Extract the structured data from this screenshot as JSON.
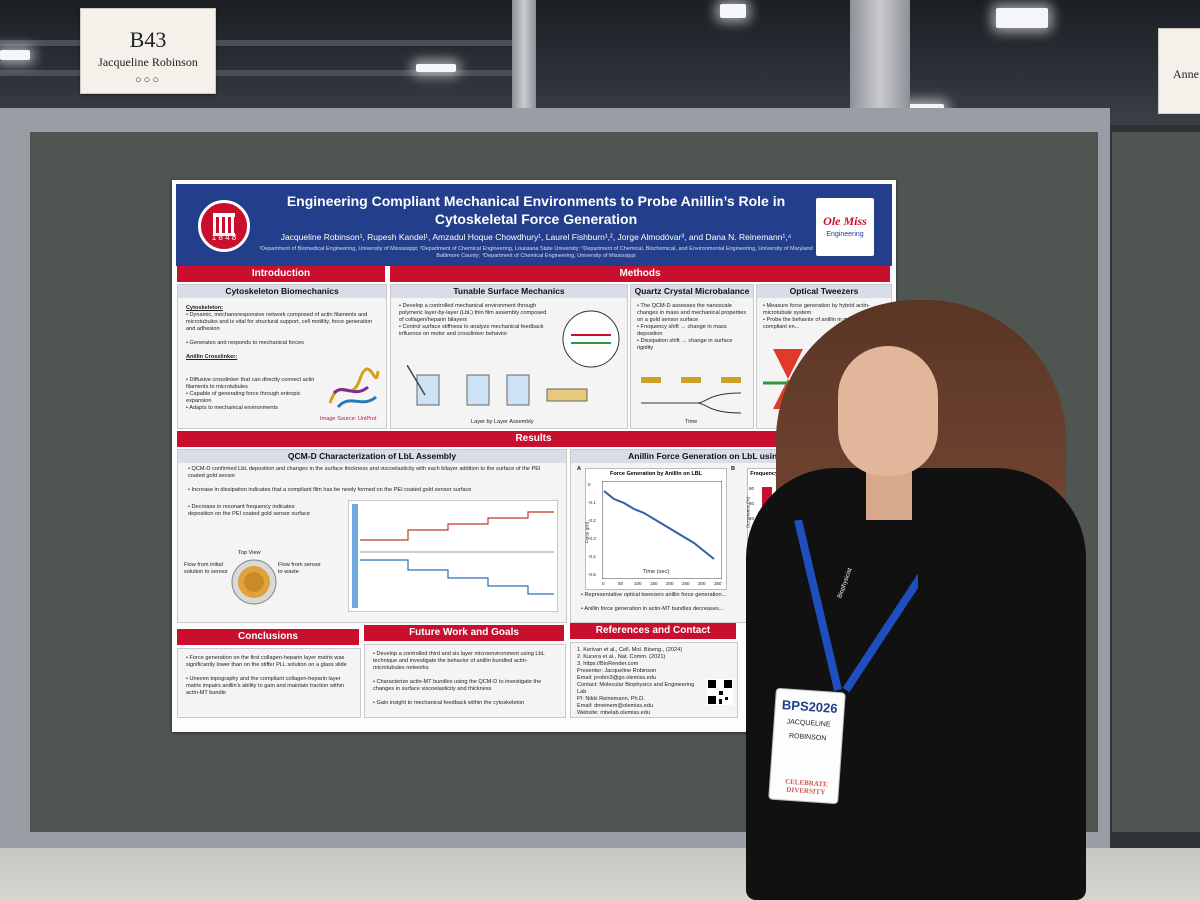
{
  "booth_sign": {
    "number": "B43",
    "name": "Jacqueline Robinson",
    "dots": "○○○"
  },
  "booth_sign_right": {
    "name": "Anne"
  },
  "poster": {
    "seal_year": "1 8 4 8",
    "title": "Engineering Compliant Mechanical Environments to Probe Anillin’s Role in Cytoskeletal Force Generation",
    "authors": "Jacqueline Robinson¹, Rupesh Kandel¹, Amzadul Hoque Chowdhury¹, Laurel Fishburn¹,², Jorge Almodóvar³, and Dana N. Reinemann¹,⁴",
    "affiliations": "¹Department of Biomedical Engineering, University of Mississippi; ²Department of Chemical Engineering, Louisiana State University; ³Department of Chemical, Biochemical, and Environmental Engineering, University of Maryland Baltimore County; ⁴Department of Chemical Engineering, University of Mississippi",
    "logo_top": "Ole Miss",
    "logo_bottom": "Engineering",
    "sections": {
      "introduction": "Introduction",
      "methods": "Methods",
      "results": "Results",
      "conclusions": "Conclusions",
      "future": "Future Work and Goals",
      "references": "References and Contact"
    },
    "panels": {
      "cyto": {
        "title": "Cytoskeleton Biomechanics",
        "h1": "Cytoskeleton:",
        "b1": "Dynamic, mechanoresponsive network composed of actin filaments and microtubules and is vital for structural support, cell motility, force generation and adhesion",
        "b2": "Generates and responds to mechanical forces",
        "h2": "Anillin Crosslinker:",
        "b3": "Diffusive crosslinker that can directly connect actin filaments to microtubules",
        "b4": "Capable of generating force through entropic expansion",
        "b5": "Adapts to mechanical environments",
        "source": "Image Source: UniProt"
      },
      "tunable": {
        "title": "Tunable Surface Mechanics",
        "b1": "Develop a controlled mechanical environment through polymeric layer-by-layer (LbL) thin film assembly composed of collagen/heparin bilayers",
        "b2": "Control surface stiffness to analyze mechanical feedback influence on motor and crosslinker behavior",
        "caption": "Layer by Layer Assembly"
      },
      "qcm": {
        "title": "Quartz Crystal Microbalance",
        "b1": "The QCM-D assesses the nanoscale changes in mass and mechanical properties on a gold sensor surface",
        "b2": "Frequency shift → change in mass deposition",
        "b3": "Dissipation shift → change in surface rigidity",
        "axis": "Time"
      },
      "tweezers": {
        "title": "Optical Tweezers",
        "b1": "Measure force generation by hybrid actin-microtubule system",
        "b2": "Probe the behavior of anillin in mechanically compliant en..."
      },
      "qcmd": {
        "title": "QCM-D Characterization of LbL Assembly",
        "b1": "QCM-D confirmed LbL deposition and changes in the surface thickness and viscoelasticity with each bilayer addition to the surface of the PEI coated gold sensor",
        "b2": "Increase in dissipation indicates that a compliant film has be newly formed on the PEI coated gold sensor surface",
        "b3": "Decrease in resonant frequency indicates deposition on the PEI coated gold sensor surface",
        "top_view": "Top View",
        "flow_in": "Flow from initial solution to sensor",
        "flow_out": "Flow from sensor to waste"
      },
      "anillin": {
        "title": "Anillin Force Generation on LbL using Optical Tw...",
        "chart_title": "Force Generation by Anillin on LBL",
        "label_a": "A",
        "label_b": "B",
        "ylabel": "Force (pN)",
        "xlabel": "Time (sec)",
        "yticks": [
          "0",
          "-0.1",
          "-0.2",
          "-0.3",
          "-0.4",
          "-0.5"
        ],
        "xticks": [
          "0",
          "50",
          "100",
          "150",
          "200",
          "250",
          "300",
          "350"
        ],
        "freq_title": "Frequency of Force...",
        "freq_ylabel": "Occurrence (%)",
        "freq_yticks": [
          "80",
          "60",
          "40",
          "20"
        ],
        "b1": "Representative optical tweezers anillin force generation...",
        "b2": "Anillin force generation in actin-MT bundles decreases..."
      },
      "conclusions": {
        "b1": "Force generation on the first collagen-heparin layer matrix was significantly lower than on the stiffer PLL solution on a glass slide",
        "b2": "Uneven topography and the compliant collagen-heparin layer matrix impairs anillin’s ability to gain and maintain traction within actin-MT bundle"
      },
      "future": {
        "b1": "Develop a controlled third and six layer microenvironment using LbL technique and investigate the behavior of anillin bundled actin-microtubules networks",
        "b2": "Characterize actin-MT bundles using the QCM-D to investigate the changes in surface viscoelasticity and thickness",
        "b3": "Gain insight to mechanical feedback within the cytoskeleton"
      },
      "references": {
        "r1": "1. Kerivan et al., Cell. Mol. Bioeng., (2024)",
        "r2": "2. Kucera et al., Nat. Comm. (2021)",
        "r3": "3. https://BioRender.com",
        "presenter": "Presenter: Jacqueline Robinson",
        "email": "Email: jrrobin3@go.olemiss.edu",
        "contact": "Contact: Molecular Biophysics and Engineering Lab",
        "pi": "PI: Nikki Reinemann, Ph.D.",
        "pi_email": "Email: dnreinem@olemiss.edu",
        "website": "Website: mbelab.olemiss.edu"
      }
    }
  },
  "badge": {
    "logo": "BPS2026",
    "first": "JACQUELINE",
    "last": "ROBINSON",
    "footer": "CELEBRATE DIVERSITY"
  },
  "lanyard_text": "Biophysicist"
}
